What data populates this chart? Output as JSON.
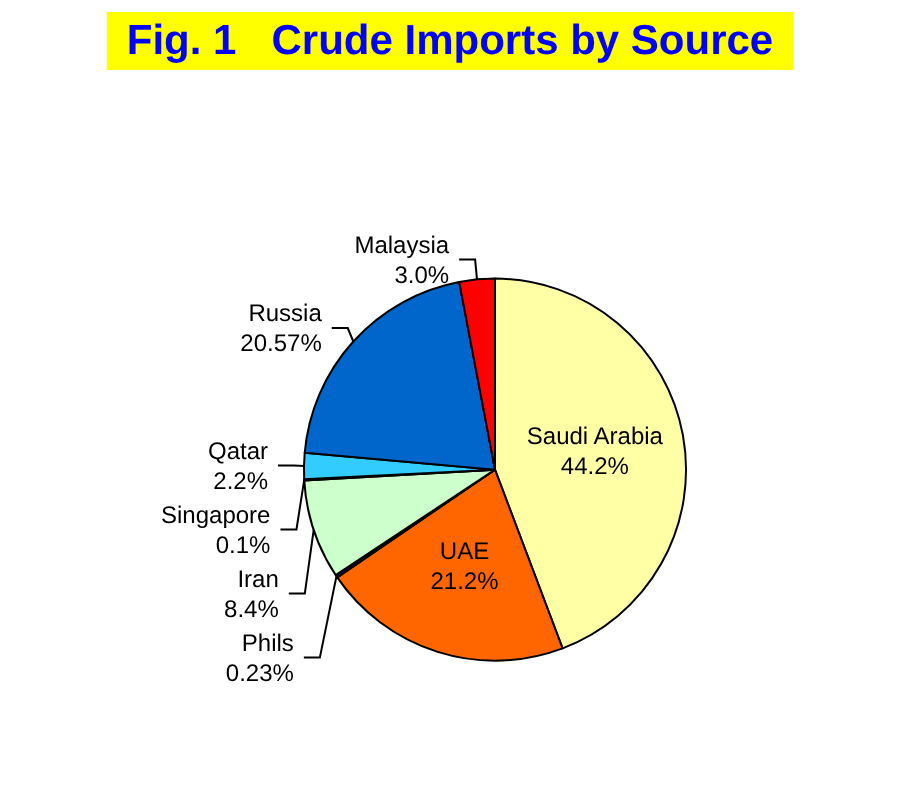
{
  "chart_data": {
    "type": "pie",
    "title": "Fig. 1   Crude Imports by Source",
    "categories": [
      "Saudi Arabia",
      "UAE",
      "Phils",
      "Iran",
      "Singapore",
      "Qatar",
      "Russia",
      "Malaysia"
    ],
    "values": [
      44.2,
      21.2,
      0.23,
      8.4,
      0.1,
      2.2,
      20.57,
      3.0
    ],
    "value_labels": [
      "44.2%",
      "21.2%",
      "0.23%",
      "8.4%",
      "0.1%",
      "2.2%",
      "20.57%",
      "3.0%"
    ],
    "colors": [
      "#ffffa6",
      "#ff6600",
      "#000099",
      "#ccffcc",
      "#3399ff",
      "#33ccff",
      "#0066cc",
      "#ff0000"
    ],
    "legend": false
  }
}
